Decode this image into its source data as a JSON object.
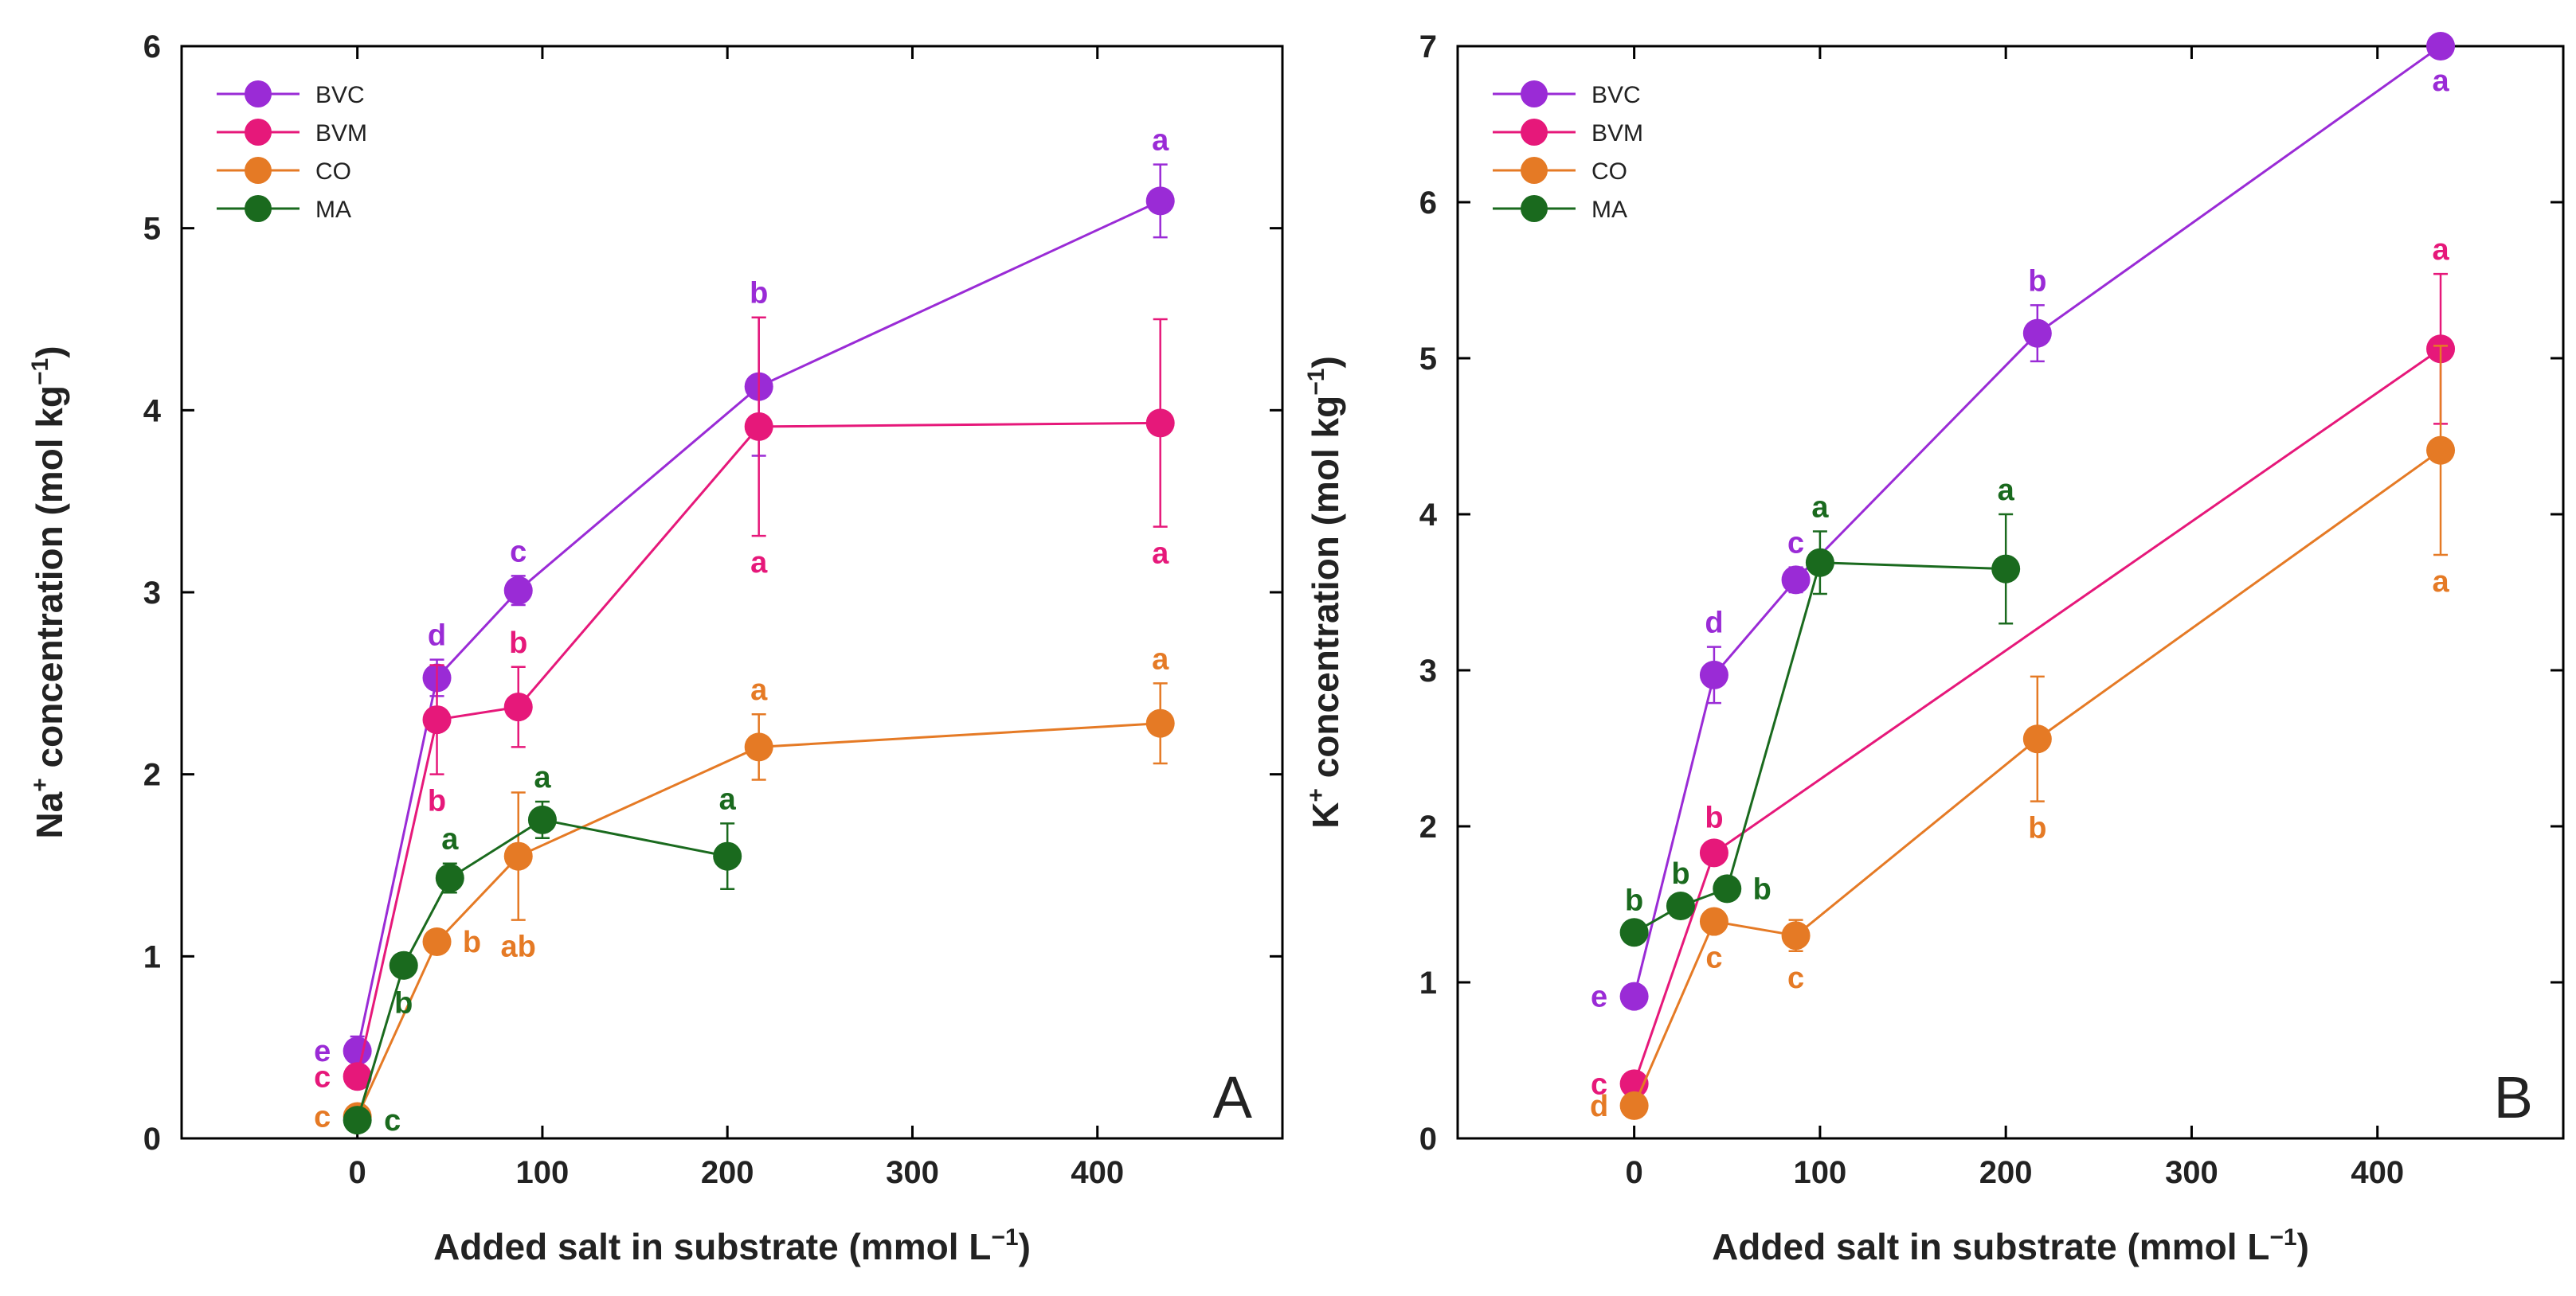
{
  "chart_data": [
    {
      "type": "line",
      "panel_label": "A",
      "xlabel": "Added salt in substrate (mmol L",
      "xlabel_sup": "−1",
      "xlabel_end": ")",
      "ylabel_pre": "Na",
      "ylabel_sup": "+",
      "ylabel_mid": " concentration (mol kg",
      "ylabel_sup2": "−1",
      "ylabel_end": ")",
      "xlim": [
        -95,
        500
      ],
      "ylim": [
        0,
        6
      ],
      "xticks": [
        0,
        100,
        200,
        300,
        400
      ],
      "yticks": [
        0,
        1,
        2,
        3,
        4,
        5,
        6
      ],
      "legend_position": "top-left",
      "series": [
        {
          "name": "BVC",
          "color": "#9a2bd6",
          "points": [
            {
              "x": 0,
              "y": 0.48,
              "err": 0.08,
              "label": "e",
              "pos": "left"
            },
            {
              "x": 43,
              "y": 2.53,
              "err": 0.1,
              "label": "d",
              "pos": "above"
            },
            {
              "x": 87,
              "y": 3.01,
              "err": 0.08,
              "label": "c",
              "pos": "above"
            },
            {
              "x": 217,
              "y": 4.13,
              "err": 0.38,
              "label": "b",
              "pos": "above"
            },
            {
              "x": 434,
              "y": 5.15,
              "err": 0.2,
              "label": "a",
              "pos": "above"
            }
          ]
        },
        {
          "name": "BVM",
          "color": "#e6187a",
          "points": [
            {
              "x": 0,
              "y": 0.34,
              "err": 0.06,
              "label": "c",
              "pos": "left"
            },
            {
              "x": 43,
              "y": 2.3,
              "err": 0.3,
              "label": "b",
              "pos": "below"
            },
            {
              "x": 87,
              "y": 2.37,
              "err": 0.22,
              "label": "b",
              "pos": "above"
            },
            {
              "x": 217,
              "y": 3.91,
              "err": 0.6,
              "label": "a",
              "pos": "below"
            },
            {
              "x": 434,
              "y": 3.93,
              "err": 0.57,
              "label": "a",
              "pos": "below"
            }
          ]
        },
        {
          "name": "CO",
          "color": "#e57a25",
          "points": [
            {
              "x": 0,
              "y": 0.12,
              "err": 0.03,
              "label": "c",
              "pos": "left"
            },
            {
              "x": 43,
              "y": 1.08,
              "err": 0.05,
              "label": "b",
              "pos": "right"
            },
            {
              "x": 87,
              "y": 1.55,
              "err": 0.35,
              "label": "ab",
              "pos": "below"
            },
            {
              "x": 217,
              "y": 2.15,
              "err": 0.18,
              "label": "a",
              "pos": "above"
            },
            {
              "x": 434,
              "y": 2.28,
              "err": 0.22,
              "label": "a",
              "pos": "above"
            }
          ]
        },
        {
          "name": "MA",
          "color": "#1a6a1e",
          "points": [
            {
              "x": 0,
              "y": 0.1,
              "err": 0.03,
              "label": "c",
              "pos": "right"
            },
            {
              "x": 25,
              "y": 0.95,
              "err": 0.06,
              "label": "b",
              "pos": "below"
            },
            {
              "x": 50,
              "y": 1.43,
              "err": 0.08,
              "label": "a",
              "pos": "above"
            },
            {
              "x": 100,
              "y": 1.75,
              "err": 0.1,
              "label": "a",
              "pos": "above"
            },
            {
              "x": 200,
              "y": 1.55,
              "err": 0.18,
              "label": "a",
              "pos": "above"
            }
          ]
        }
      ]
    },
    {
      "type": "line",
      "panel_label": "B",
      "xlabel": "Added salt in substrate (mmol L",
      "xlabel_sup": "−1",
      "xlabel_end": ")",
      "ylabel_pre": "K",
      "ylabel_sup": "+",
      "ylabel_mid": " concentration (mol kg",
      "ylabel_sup2": "−1",
      "ylabel_end": ")",
      "xlim": [
        -95,
        500
      ],
      "ylim": [
        0,
        7
      ],
      "xticks": [
        0,
        100,
        200,
        300,
        400
      ],
      "yticks": [
        0,
        1,
        2,
        3,
        4,
        5,
        6,
        7
      ],
      "legend_position": "top-left",
      "series": [
        {
          "name": "BVC",
          "color": "#9a2bd6",
          "points": [
            {
              "x": 0,
              "y": 0.91,
              "err": 0.04,
              "label": "e",
              "pos": "left"
            },
            {
              "x": 43,
              "y": 2.97,
              "err": 0.18,
              "label": "d",
              "pos": "above"
            },
            {
              "x": 87,
              "y": 3.58,
              "err": 0.08,
              "label": "c",
              "pos": "above"
            },
            {
              "x": 217,
              "y": 5.16,
              "err": 0.18,
              "label": "b",
              "pos": "above"
            },
            {
              "x": 434,
              "y": 7.0,
              "err": 0.05,
              "label": "a",
              "pos": "below"
            }
          ]
        },
        {
          "name": "BVM",
          "color": "#e6187a",
          "points": [
            {
              "x": 0,
              "y": 0.35,
              "err": 0.04,
              "label": "c",
              "pos": "left"
            },
            {
              "x": 43,
              "y": 1.83,
              "err": 0.07,
              "label": "b",
              "pos": "above"
            },
            {
              "x": 434,
              "y": 5.06,
              "err": 0.48,
              "label": "a",
              "pos": "above"
            }
          ]
        },
        {
          "name": "CO",
          "color": "#e57a25",
          "points": [
            {
              "x": 0,
              "y": 0.21,
              "err": 0.03,
              "label": "d",
              "pos": "left"
            },
            {
              "x": 43,
              "y": 1.39,
              "err": 0.06,
              "label": "c",
              "pos": "below"
            },
            {
              "x": 87,
              "y": 1.3,
              "err": 0.1,
              "label": "c",
              "pos": "below"
            },
            {
              "x": 217,
              "y": 2.56,
              "err": 0.4,
              "label": "b",
              "pos": "below"
            },
            {
              "x": 434,
              "y": 4.41,
              "err": 0.67,
              "label": "a",
              "pos": "below"
            }
          ]
        },
        {
          "name": "MA",
          "color": "#1a6a1e",
          "points": [
            {
              "x": 0,
              "y": 1.32,
              "err": 0.05,
              "label": "b",
              "pos": "above"
            },
            {
              "x": 25,
              "y": 1.49,
              "err": 0.05,
              "label": "b",
              "pos": "above"
            },
            {
              "x": 50,
              "y": 1.6,
              "err": 0.05,
              "label": "b",
              "pos": "right"
            },
            {
              "x": 100,
              "y": 3.69,
              "err": 0.2,
              "label": "a",
              "pos": "above"
            },
            {
              "x": 200,
              "y": 3.65,
              "err": 0.35,
              "label": "a",
              "pos": "above"
            }
          ]
        }
      ]
    }
  ]
}
